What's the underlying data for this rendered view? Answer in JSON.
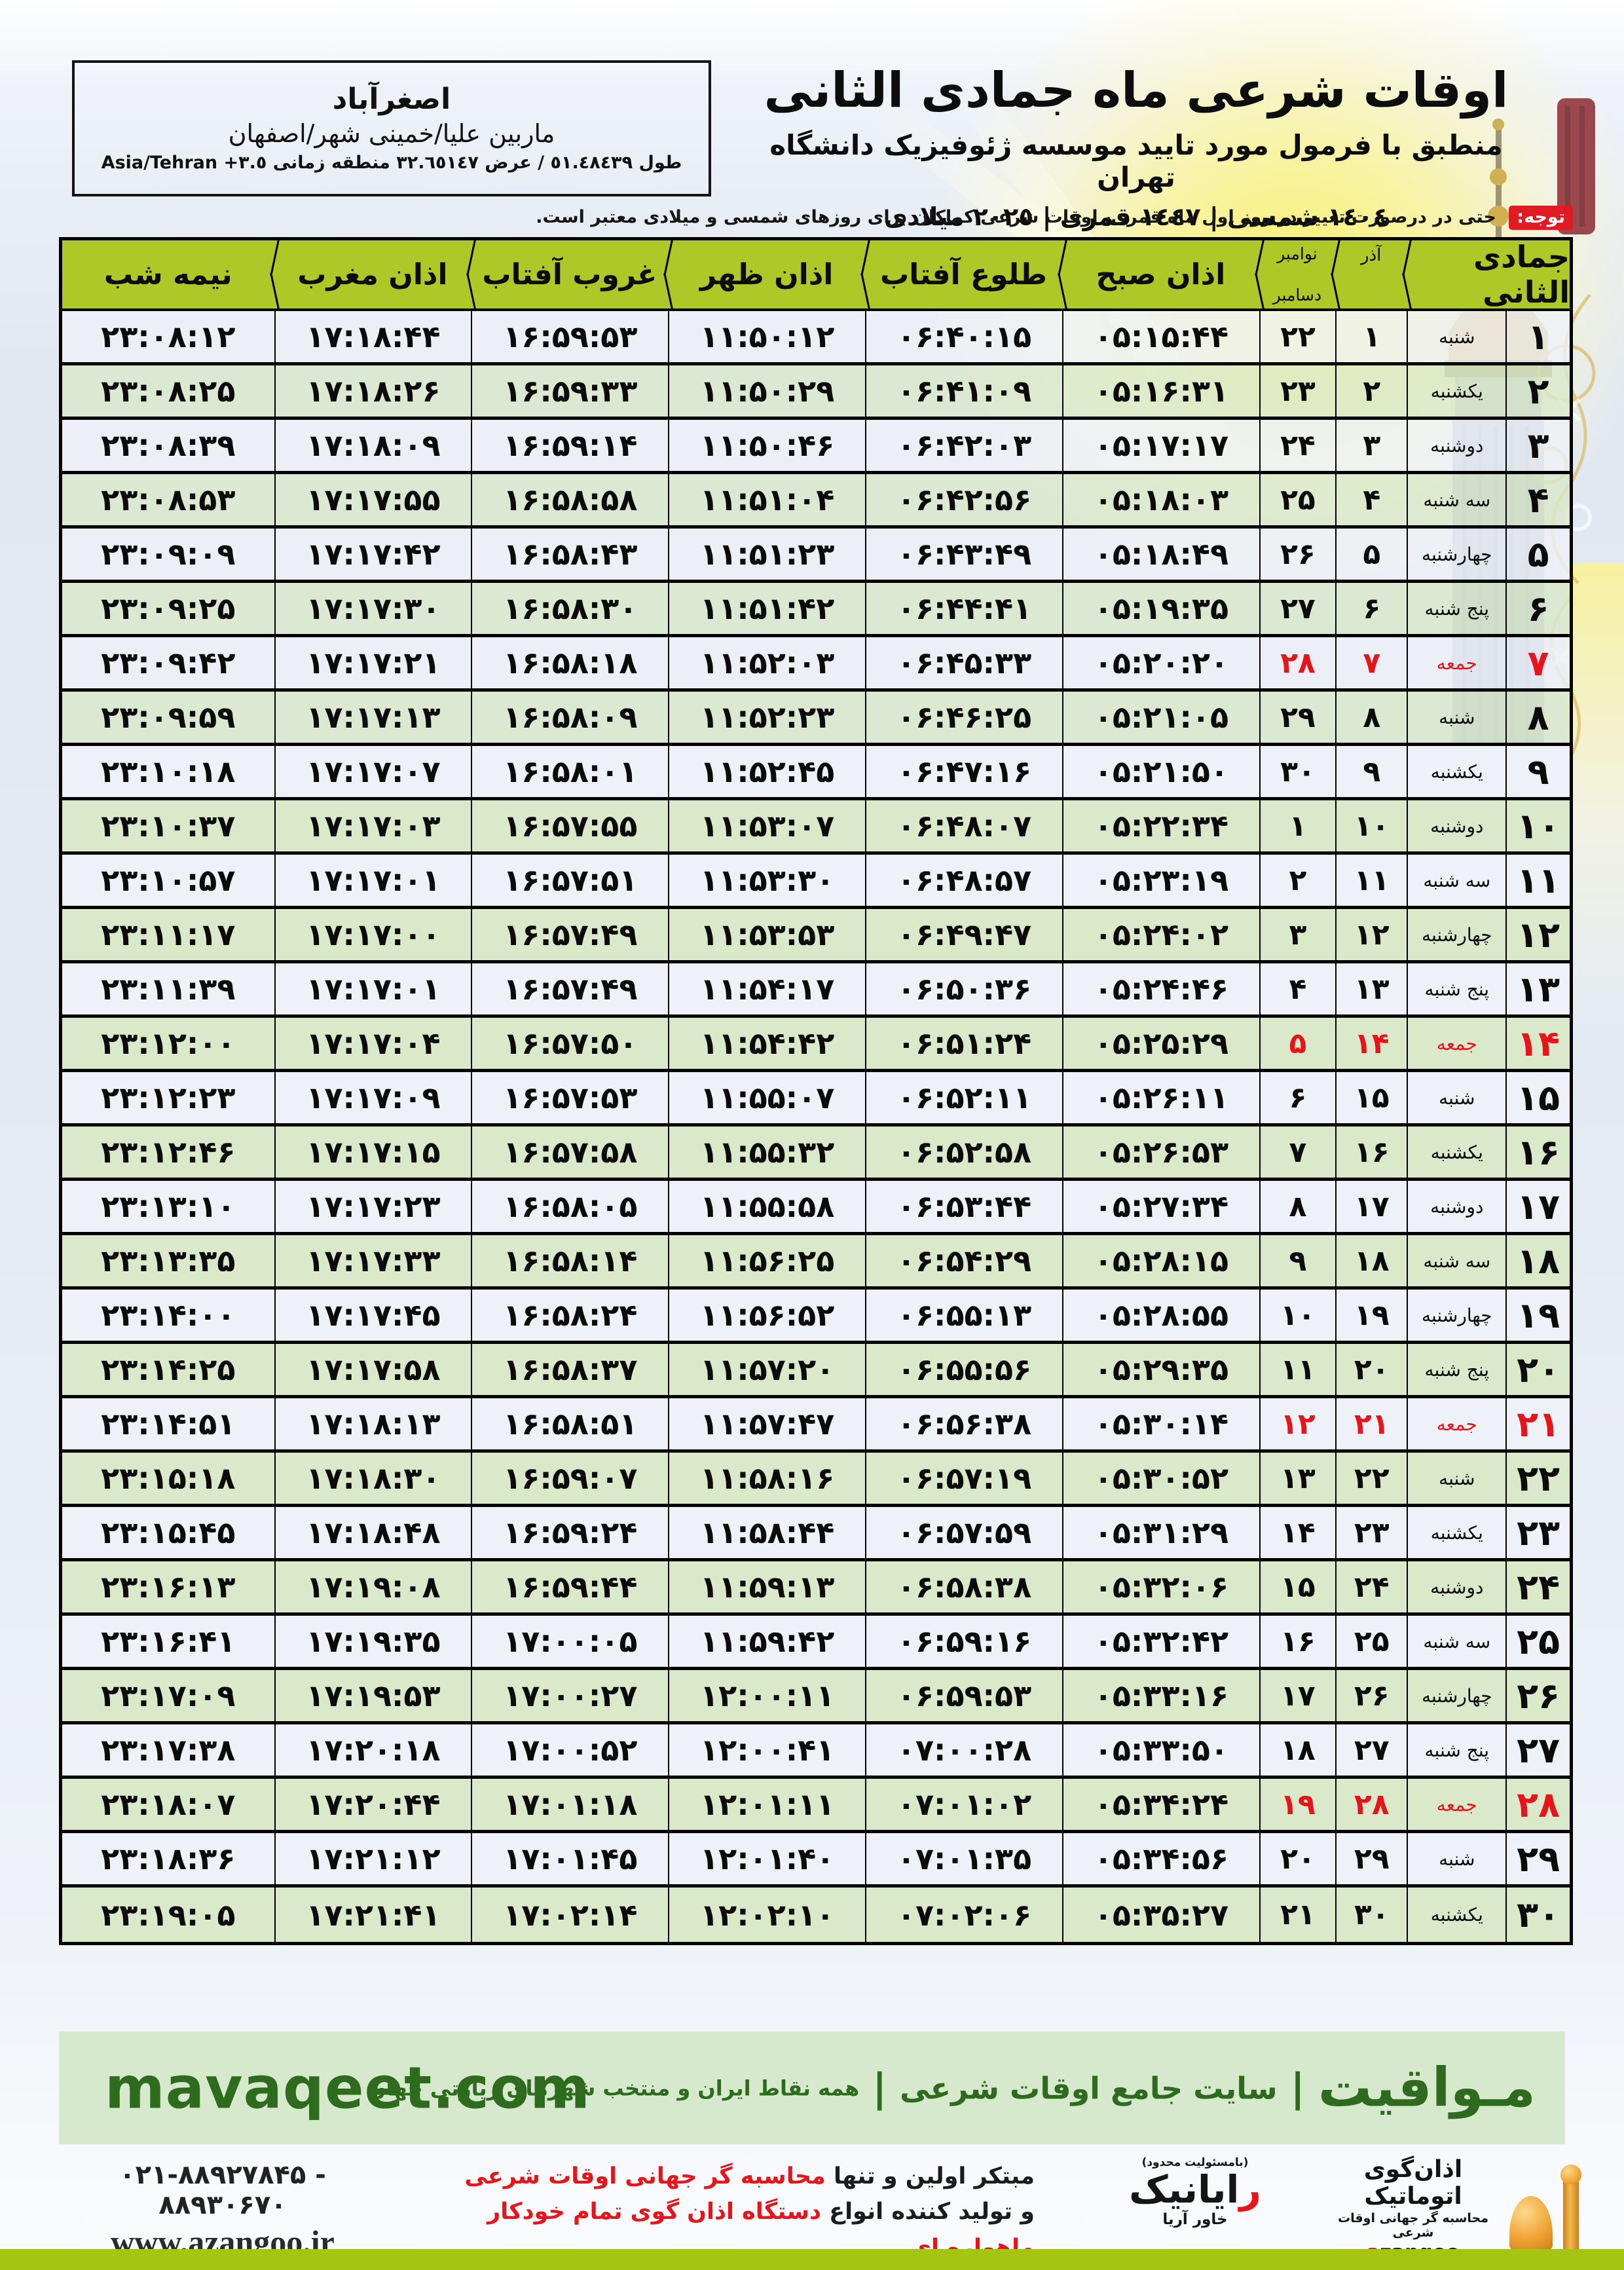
{
  "location": {
    "city": "اصغرآباد",
    "region": "ماربین علیا/خمینی شهر/اصفهان",
    "coords": "طول ٥١.٤٨٤٣٩ / عرض ٣٢.٦٥١٤٧ منطقه زمانی",
    "timezone": "Asia/Tehran +٣.٥"
  },
  "title": {
    "main": "اوقات شرعی ماه جمادی الثانی",
    "subtitle": "منطبق با فرمول مورد تایید موسسه ژئوفیزیک دانشگاه تهران",
    "dates": "١٤٠٤ شمسی | ١٤٤٧ قمری | ٢٠٢٥ میلادی"
  },
  "notice": {
    "label": "توجه:",
    "text": "حتی در درصورت تغییر در روز اول ماه قمری، اوقات شرعی کماکان برای روزهای شمسی و میلادی معتبر است."
  },
  "table": {
    "headers": {
      "month": "جمادی الثانی",
      "azar": "آذر",
      "november": "نوامبر",
      "december": "دسامبر",
      "fajr": "اذان صبح",
      "sunrise": "طلوع آفتاب",
      "dhuhr": "اذان ظهر",
      "sunset": "غروب آفتاب",
      "maghrib": "اذان مغرب",
      "midnight": "نیمه شب"
    },
    "rows": [
      {
        "day": "۱",
        "weekday": "شنبه",
        "azar": "۱",
        "greg": "۲۲",
        "fajr": "۰۵:۱۵:۴۴",
        "sunrise": "۰۶:۴۰:۱۵",
        "dhuhr": "۱۱:۵۰:۱۲",
        "sunset": "۱۶:۵۹:۵۳",
        "maghrib": "۱۷:۱۸:۴۴",
        "midnight": "۲۳:۰۸:۱۲",
        "friday": false
      },
      {
        "day": "۲",
        "weekday": "یکشنبه",
        "azar": "۲",
        "greg": "۲۳",
        "fajr": "۰۵:۱۶:۳۱",
        "sunrise": "۰۶:۴۱:۰۹",
        "dhuhr": "۱۱:۵۰:۲۹",
        "sunset": "۱۶:۵۹:۳۳",
        "maghrib": "۱۷:۱۸:۲۶",
        "midnight": "۲۳:۰۸:۲۵",
        "friday": false
      },
      {
        "day": "۳",
        "weekday": "دوشنبه",
        "azar": "۳",
        "greg": "۲۴",
        "fajr": "۰۵:۱۷:۱۷",
        "sunrise": "۰۶:۴۲:۰۳",
        "dhuhr": "۱۱:۵۰:۴۶",
        "sunset": "۱۶:۵۹:۱۴",
        "maghrib": "۱۷:۱۸:۰۹",
        "midnight": "۲۳:۰۸:۳۹",
        "friday": false
      },
      {
        "day": "۴",
        "weekday": "سه شنبه",
        "azar": "۴",
        "greg": "۲۵",
        "fajr": "۰۵:۱۸:۰۳",
        "sunrise": "۰۶:۴۲:۵۶",
        "dhuhr": "۱۱:۵۱:۰۴",
        "sunset": "۱۶:۵۸:۵۸",
        "maghrib": "۱۷:۱۷:۵۵",
        "midnight": "۲۳:۰۸:۵۳",
        "friday": false
      },
      {
        "day": "۵",
        "weekday": "چهارشنبه",
        "azar": "۵",
        "greg": "۲۶",
        "fajr": "۰۵:۱۸:۴۹",
        "sunrise": "۰۶:۴۳:۴۹",
        "dhuhr": "۱۱:۵۱:۲۳",
        "sunset": "۱۶:۵۸:۴۳",
        "maghrib": "۱۷:۱۷:۴۲",
        "midnight": "۲۳:۰۹:۰۹",
        "friday": false
      },
      {
        "day": "۶",
        "weekday": "پنج شنبه",
        "azar": "۶",
        "greg": "۲۷",
        "fajr": "۰۵:۱۹:۳۵",
        "sunrise": "۰۶:۴۴:۴۱",
        "dhuhr": "۱۱:۵۱:۴۲",
        "sunset": "۱۶:۵۸:۳۰",
        "maghrib": "۱۷:۱۷:۳۰",
        "midnight": "۲۳:۰۹:۲۵",
        "friday": false
      },
      {
        "day": "۷",
        "weekday": "جمعه",
        "azar": "۷",
        "greg": "۲۸",
        "fajr": "۰۵:۲۰:۲۰",
        "sunrise": "۰۶:۴۵:۳۳",
        "dhuhr": "۱۱:۵۲:۰۳",
        "sunset": "۱۶:۵۸:۱۸",
        "maghrib": "۱۷:۱۷:۲۱",
        "midnight": "۲۳:۰۹:۴۲",
        "friday": true
      },
      {
        "day": "۸",
        "weekday": "شنبه",
        "azar": "۸",
        "greg": "۲۹",
        "fajr": "۰۵:۲۱:۰۵",
        "sunrise": "۰۶:۴۶:۲۵",
        "dhuhr": "۱۱:۵۲:۲۳",
        "sunset": "۱۶:۵۸:۰۹",
        "maghrib": "۱۷:۱۷:۱۳",
        "midnight": "۲۳:۰۹:۵۹",
        "friday": false
      },
      {
        "day": "۹",
        "weekday": "یکشنبه",
        "azar": "۹",
        "greg": "۳۰",
        "fajr": "۰۵:۲۱:۵۰",
        "sunrise": "۰۶:۴۷:۱۶",
        "dhuhr": "۱۱:۵۲:۴۵",
        "sunset": "۱۶:۵۸:۰۱",
        "maghrib": "۱۷:۱۷:۰۷",
        "midnight": "۲۳:۱۰:۱۸",
        "friday": false
      },
      {
        "day": "۱۰",
        "weekday": "دوشنبه",
        "azar": "۱۰",
        "greg": "۱",
        "fajr": "۰۵:۲۲:۳۴",
        "sunrise": "۰۶:۴۸:۰۷",
        "dhuhr": "۱۱:۵۳:۰۷",
        "sunset": "۱۶:۵۷:۵۵",
        "maghrib": "۱۷:۱۷:۰۳",
        "midnight": "۲۳:۱۰:۳۷",
        "friday": false
      },
      {
        "day": "۱۱",
        "weekday": "سه شنبه",
        "azar": "۱۱",
        "greg": "۲",
        "fajr": "۰۵:۲۳:۱۹",
        "sunrise": "۰۶:۴۸:۵۷",
        "dhuhr": "۱۱:۵۳:۳۰",
        "sunset": "۱۶:۵۷:۵۱",
        "maghrib": "۱۷:۱۷:۰۱",
        "midnight": "۲۳:۱۰:۵۷",
        "friday": false
      },
      {
        "day": "۱۲",
        "weekday": "چهارشنبه",
        "azar": "۱۲",
        "greg": "۳",
        "fajr": "۰۵:۲۴:۰۲",
        "sunrise": "۰۶:۴۹:۴۷",
        "dhuhr": "۱۱:۵۳:۵۳",
        "sunset": "۱۶:۵۷:۴۹",
        "maghrib": "۱۷:۱۷:۰۰",
        "midnight": "۲۳:۱۱:۱۷",
        "friday": false
      },
      {
        "day": "۱۳",
        "weekday": "پنج شنبه",
        "azar": "۱۳",
        "greg": "۴",
        "fajr": "۰۵:۲۴:۴۶",
        "sunrise": "۰۶:۵۰:۳۶",
        "dhuhr": "۱۱:۵۴:۱۷",
        "sunset": "۱۶:۵۷:۴۹",
        "maghrib": "۱۷:۱۷:۰۱",
        "midnight": "۲۳:۱۱:۳۹",
        "friday": false
      },
      {
        "day": "۱۴",
        "weekday": "جمعه",
        "azar": "۱۴",
        "greg": "۵",
        "fajr": "۰۵:۲۵:۲۹",
        "sunrise": "۰۶:۵۱:۲۴",
        "dhuhr": "۱۱:۵۴:۴۲",
        "sunset": "۱۶:۵۷:۵۰",
        "maghrib": "۱۷:۱۷:۰۴",
        "midnight": "۲۳:۱۲:۰۰",
        "friday": true
      },
      {
        "day": "۱۵",
        "weekday": "شنبه",
        "azar": "۱۵",
        "greg": "۶",
        "fajr": "۰۵:۲۶:۱۱",
        "sunrise": "۰۶:۵۲:۱۱",
        "dhuhr": "۱۱:۵۵:۰۷",
        "sunset": "۱۶:۵۷:۵۳",
        "maghrib": "۱۷:۱۷:۰۹",
        "midnight": "۲۳:۱۲:۲۳",
        "friday": false
      },
      {
        "day": "۱۶",
        "weekday": "یکشنبه",
        "azar": "۱۶",
        "greg": "۷",
        "fajr": "۰۵:۲۶:۵۳",
        "sunrise": "۰۶:۵۲:۵۸",
        "dhuhr": "۱۱:۵۵:۳۲",
        "sunset": "۱۶:۵۷:۵۸",
        "maghrib": "۱۷:۱۷:۱۵",
        "midnight": "۲۳:۱۲:۴۶",
        "friday": false
      },
      {
        "day": "۱۷",
        "weekday": "دوشنبه",
        "azar": "۱۷",
        "greg": "۸",
        "fajr": "۰۵:۲۷:۳۴",
        "sunrise": "۰۶:۵۳:۴۴",
        "dhuhr": "۱۱:۵۵:۵۸",
        "sunset": "۱۶:۵۸:۰۵",
        "maghrib": "۱۷:۱۷:۲۳",
        "midnight": "۲۳:۱۳:۱۰",
        "friday": false
      },
      {
        "day": "۱۸",
        "weekday": "سه شنبه",
        "azar": "۱۸",
        "greg": "۹",
        "fajr": "۰۵:۲۸:۱۵",
        "sunrise": "۰۶:۵۴:۲۹",
        "dhuhr": "۱۱:۵۶:۲۵",
        "sunset": "۱۶:۵۸:۱۴",
        "maghrib": "۱۷:۱۷:۳۳",
        "midnight": "۲۳:۱۳:۳۵",
        "friday": false
      },
      {
        "day": "۱۹",
        "weekday": "چهارشنبه",
        "azar": "۱۹",
        "greg": "۱۰",
        "fajr": "۰۵:۲۸:۵۵",
        "sunrise": "۰۶:۵۵:۱۳",
        "dhuhr": "۱۱:۵۶:۵۲",
        "sunset": "۱۶:۵۸:۲۴",
        "maghrib": "۱۷:۱۷:۴۵",
        "midnight": "۲۳:۱۴:۰۰",
        "friday": false
      },
      {
        "day": "۲۰",
        "weekday": "پنج شنبه",
        "azar": "۲۰",
        "greg": "۱۱",
        "fajr": "۰۵:۲۹:۳۵",
        "sunrise": "۰۶:۵۵:۵۶",
        "dhuhr": "۱۱:۵۷:۲۰",
        "sunset": "۱۶:۵۸:۳۷",
        "maghrib": "۱۷:۱۷:۵۸",
        "midnight": "۲۳:۱۴:۲۵",
        "friday": false
      },
      {
        "day": "۲۱",
        "weekday": "جمعه",
        "azar": "۲۱",
        "greg": "۱۲",
        "fajr": "۰۵:۳۰:۱۴",
        "sunrise": "۰۶:۵۶:۳۸",
        "dhuhr": "۱۱:۵۷:۴۷",
        "sunset": "۱۶:۵۸:۵۱",
        "maghrib": "۱۷:۱۸:۱۳",
        "midnight": "۲۳:۱۴:۵۱",
        "friday": true
      },
      {
        "day": "۲۲",
        "weekday": "شنبه",
        "azar": "۲۲",
        "greg": "۱۳",
        "fajr": "۰۵:۳۰:۵۲",
        "sunrise": "۰۶:۵۷:۱۹",
        "dhuhr": "۱۱:۵۸:۱۶",
        "sunset": "۱۶:۵۹:۰۷",
        "maghrib": "۱۷:۱۸:۳۰",
        "midnight": "۲۳:۱۵:۱۸",
        "friday": false
      },
      {
        "day": "۲۳",
        "weekday": "یکشنبه",
        "azar": "۲۳",
        "greg": "۱۴",
        "fajr": "۰۵:۳۱:۲۹",
        "sunrise": "۰۶:۵۷:۵۹",
        "dhuhr": "۱۱:۵۸:۴۴",
        "sunset": "۱۶:۵۹:۲۴",
        "maghrib": "۱۷:۱۸:۴۸",
        "midnight": "۲۳:۱۵:۴۵",
        "friday": false
      },
      {
        "day": "۲۴",
        "weekday": "دوشنبه",
        "azar": "۲۴",
        "greg": "۱۵",
        "fajr": "۰۵:۳۲:۰۶",
        "sunrise": "۰۶:۵۸:۳۸",
        "dhuhr": "۱۱:۵۹:۱۳",
        "sunset": "۱۶:۵۹:۴۴",
        "maghrib": "۱۷:۱۹:۰۸",
        "midnight": "۲۳:۱۶:۱۳",
        "friday": false
      },
      {
        "day": "۲۵",
        "weekday": "سه شنبه",
        "azar": "۲۵",
        "greg": "۱۶",
        "fajr": "۰۵:۳۲:۴۲",
        "sunrise": "۰۶:۵۹:۱۶",
        "dhuhr": "۱۱:۵۹:۴۲",
        "sunset": "۱۷:۰۰:۰۵",
        "maghrib": "۱۷:۱۹:۳۵",
        "midnight": "۲۳:۱۶:۴۱",
        "friday": false
      },
      {
        "day": "۲۶",
        "weekday": "چهارشنبه",
        "azar": "۲۶",
        "greg": "۱۷",
        "fajr": "۰۵:۳۳:۱۶",
        "sunrise": "۰۶:۵۹:۵۳",
        "dhuhr": "۱۲:۰۰:۱۱",
        "sunset": "۱۷:۰۰:۲۷",
        "maghrib": "۱۷:۱۹:۵۳",
        "midnight": "۲۳:۱۷:۰۹",
        "friday": false
      },
      {
        "day": "۲۷",
        "weekday": "پنج شنبه",
        "azar": "۲۷",
        "greg": "۱۸",
        "fajr": "۰۵:۳۳:۵۰",
        "sunrise": "۰۷:۰۰:۲۸",
        "dhuhr": "۱۲:۰۰:۴۱",
        "sunset": "۱۷:۰۰:۵۲",
        "maghrib": "۱۷:۲۰:۱۸",
        "midnight": "۲۳:۱۷:۳۸",
        "friday": false
      },
      {
        "day": "۲۸",
        "weekday": "جمعه",
        "azar": "۲۸",
        "greg": "۱۹",
        "fajr": "۰۵:۳۴:۲۴",
        "sunrise": "۰۷:۰۱:۰۲",
        "dhuhr": "۱۲:۰۱:۱۱",
        "sunset": "۱۷:۰۱:۱۸",
        "maghrib": "۱۷:۲۰:۴۴",
        "midnight": "۲۳:۱۸:۰۷",
        "friday": true
      },
      {
        "day": "۲۹",
        "weekday": "شنبه",
        "azar": "۲۹",
        "greg": "۲۰",
        "fajr": "۰۵:۳۴:۵۶",
        "sunrise": "۰۷:۰۱:۳۵",
        "dhuhr": "۱۲:۰۱:۴۰",
        "sunset": "۱۷:۰۱:۴۵",
        "maghrib": "۱۷:۲۱:۱۲",
        "midnight": "۲۳:۱۸:۳۶",
        "friday": false
      },
      {
        "day": "۳۰",
        "weekday": "یکشنبه",
        "azar": "۳۰",
        "greg": "۲۱",
        "fajr": "۰۵:۳۵:۲۷",
        "sunrise": "۰۷:۰۲:۰۶",
        "dhuhr": "۱۲:۰۲:۱۰",
        "sunset": "۱۷:۰۲:۱۴",
        "maghrib": "۱۷:۲۱:۴۱",
        "midnight": "۲۳:۱۹:۰۵",
        "friday": false
      }
    ]
  },
  "footer": {
    "site_en": "mavaqeet.com",
    "brand_fa": "مـواقیت",
    "tagline1": "سایت جامع اوقات شرعی",
    "tagline2": "همه نقاط ایران و منتخب شهرهای زیارتی جهان",
    "phone": "۰۲۱-۸۸۹۲۷۸۴۵ - ۸۸۹۳۰۶۷۰",
    "website": "www.azangoo.ir",
    "producer_line1_black": "مبتکر اولین و تنها",
    "producer_line1_red": "محاسبه گر جهانی اوقات شرعی",
    "producer_line2_black": "و تولید کننده انواع",
    "producer_line2_red": "دستگاه اذان گوی تمام خودکار ماهواره ای",
    "rayanik_note": "(بامسئولیت محدود)",
    "rayanik_initial": "ر",
    "rayanik_rest": "ایانیک",
    "rayanik_sub": "خاور آریا",
    "azangoo_fa": "اذان‌گوی اتوماتیک",
    "azangoo_sub": "محاسبه گر جهانی اوقات شرعی",
    "azangoo_en_a": "a",
    "azangoo_en_rest": "zangoo"
  },
  "colors": {
    "accent_red": "#e8141c",
    "header_olive": "#adc827",
    "row_green": "#dbe9cb",
    "row_light": "#eef1f6",
    "footer_green_dark": "#2f6b1f",
    "footer_bar_bg": "#d7e9cd",
    "bottom_bar_olive": "#a6c513",
    "azangoo_orange": "#f0a132"
  }
}
